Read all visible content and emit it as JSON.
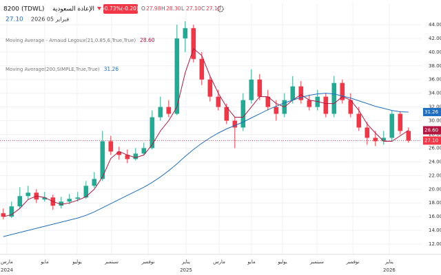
{
  "chart_data": {
    "type": "candlestick",
    "symbol": "8200",
    "exchange": "(TDWL)",
    "title": "الإعادة السعودية",
    "change": "-0.73%(-0.20)",
    "ohlc": [
      {
        "key": "O",
        "text": "27.98"
      },
      {
        "key": "H",
        "text": "28.30"
      },
      {
        "key": "L",
        "text": "27.10"
      },
      {
        "key": "C",
        "text": "27.10"
      }
    ],
    "last_price": "27.10",
    "date": "فبراير 05 2026",
    "x": [
      0,
      1,
      2,
      3,
      4,
      5,
      6,
      7,
      8,
      9,
      10,
      11,
      12,
      13,
      14,
      15,
      16,
      17,
      18,
      19,
      20,
      21,
      22,
      23,
      24,
      25,
      26,
      27,
      28,
      29,
      30,
      31,
      32,
      33,
      34,
      35,
      36,
      37,
      38,
      39,
      40,
      41,
      42,
      43,
      44,
      45,
      46,
      47,
      48,
      49
    ],
    "open": [
      16.5,
      16.0,
      17.5,
      19.0,
      19.5,
      18.5,
      18.8,
      17.6,
      18.2,
      18.6,
      18.8,
      20.5,
      21.5,
      27.0,
      25.5,
      25.0,
      24.4,
      25.2,
      26.0,
      30.5,
      32.0,
      31.0,
      42.0,
      43.5,
      39.0,
      36.0,
      33.5,
      32.0,
      30.0,
      29.0,
      33.0,
      36.0,
      33.5,
      32.0,
      31.0,
      33.0,
      35.0,
      33.0,
      32.0,
      33.5,
      31.0,
      35.5,
      33.0,
      31.0,
      29.0,
      27.5,
      27.0,
      27.5,
      31.0,
      28.5
    ],
    "high": [
      17.2,
      18.2,
      20.3,
      20.5,
      20.0,
      19.6,
      19.2,
      18.9,
      19.3,
      19.6,
      21.2,
      22.5,
      28.5,
      27.8,
      26.2,
      25.8,
      26.0,
      26.8,
      31.5,
      33.5,
      33.0,
      44.0,
      44.5,
      44.0,
      40.0,
      36.5,
      34.5,
      32.5,
      30.5,
      34.0,
      37.5,
      36.8,
      34.5,
      33.0,
      34.0,
      36.5,
      35.8,
      33.8,
      34.5,
      34.0,
      36.5,
      36.0,
      34.0,
      32.0,
      29.8,
      28.5,
      28.5,
      31.5,
      31.4,
      29.0
    ],
    "low": [
      15.6,
      15.8,
      17.2,
      18.5,
      18.0,
      18.2,
      17.0,
      17.2,
      17.8,
      18.2,
      18.6,
      20.2,
      21.2,
      25.0,
      24.3,
      23.8,
      24.2,
      25.0,
      25.8,
      30.0,
      30.5,
      30.8,
      40.0,
      38.5,
      35.2,
      32.8,
      31.5,
      29.5,
      26.0,
      28.5,
      32.5,
      33.0,
      31.5,
      30.0,
      30.5,
      32.5,
      32.5,
      31.5,
      31.5,
      30.5,
      30.5,
      32.5,
      30.5,
      28.5,
      26.5,
      26.3,
      26.5,
      27.0,
      28.0,
      26.8
    ],
    "close": [
      16.0,
      17.5,
      19.0,
      19.5,
      18.5,
      18.8,
      17.6,
      18.2,
      18.6,
      18.8,
      20.5,
      21.5,
      27.0,
      25.5,
      25.0,
      24.4,
      25.2,
      26.0,
      30.5,
      32.0,
      31.0,
      42.0,
      43.5,
      39.0,
      36.0,
      33.5,
      32.0,
      30.0,
      29.0,
      33.0,
      36.0,
      33.5,
      32.0,
      31.0,
      33.0,
      35.0,
      33.0,
      32.0,
      33.5,
      31.0,
      35.5,
      33.0,
      31.0,
      29.0,
      27.5,
      27.0,
      27.5,
      31.0,
      28.5,
      27.1
    ],
    "up_color": "#22ab94",
    "down_color": "#f23645",
    "series": [
      {
        "name": "Moving Average - Arnaud Legoux(21,0.85,6,True,True)",
        "color": "#b2163f",
        "last_label": "28.60",
        "values": [
          16.0,
          16.3,
          17.2,
          18.5,
          19.0,
          18.8,
          18.2,
          17.8,
          18.0,
          18.4,
          18.9,
          20.0,
          21.8,
          24.5,
          25.5,
          25.0,
          24.6,
          25.0,
          26.5,
          28.5,
          30.0,
          32.0,
          37.0,
          40.5,
          39.5,
          36.5,
          34.0,
          32.0,
          30.5,
          30.5,
          32.0,
          33.5,
          33.5,
          32.5,
          32.0,
          33.0,
          33.8,
          33.0,
          32.8,
          32.5,
          32.5,
          33.5,
          33.0,
          31.5,
          29.5,
          28.2,
          27.0,
          27.0,
          27.8,
          28.6
        ]
      },
      {
        "name": "Moving Average(200,SIMPLE,True,True)",
        "color": "#1e6fc2",
        "last_label": "31.26",
        "values": [
          13.1,
          13.4,
          13.7,
          14.0,
          14.3,
          14.6,
          14.9,
          15.2,
          15.5,
          15.8,
          16.2,
          16.7,
          17.3,
          17.9,
          18.5,
          19.1,
          19.7,
          20.3,
          21.0,
          21.8,
          22.7,
          23.7,
          24.8,
          25.8,
          26.7,
          27.5,
          28.2,
          28.8,
          29.3,
          29.8,
          30.4,
          31.0,
          31.6,
          32.1,
          32.6,
          33.0,
          33.4,
          33.7,
          33.9,
          34.0,
          33.9,
          33.6,
          33.3,
          32.9,
          32.5,
          32.1,
          31.8,
          31.5,
          31.3,
          31.26
        ]
      }
    ],
    "xlim": [
      -0.4,
      50.6
    ],
    "xticks": [
      {
        "value": 0.43,
        "label": "مارس",
        "year": "2024"
      },
      {
        "value": 5.02,
        "label": "مايو"
      },
      {
        "value": 8.93,
        "label": "يوليو"
      },
      {
        "value": 13.1,
        "label": "سبتمبر"
      },
      {
        "value": 17.52,
        "label": "نوفمبر"
      },
      {
        "value": 22.1,
        "label": "يناير",
        "year": "2025"
      },
      {
        "value": 26.1,
        "label": "مارس"
      },
      {
        "value": 30.02,
        "label": "مايو"
      },
      {
        "value": 33.77,
        "label": "يوليو"
      },
      {
        "value": 37.93,
        "label": "سبتمبر"
      },
      {
        "value": 42.27,
        "label": "نوفمبر"
      },
      {
        "value": 46.68,
        "label": "يناير",
        "year": "2026"
      }
    ],
    "ylim": [
      10.5,
      47.1
    ],
    "yticks": [
      {
        "value": 12,
        "label": "12.00"
      },
      {
        "value": 14,
        "label": "14.00"
      },
      {
        "value": 16,
        "label": "16.00"
      },
      {
        "value": 18,
        "label": "18.00"
      },
      {
        "value": 20,
        "label": "20.00"
      },
      {
        "value": 22,
        "label": "22.00"
      },
      {
        "value": 24,
        "label": "24.00"
      },
      {
        "value": 26,
        "label": "26.00"
      },
      {
        "value": 28,
        "label": "28.00"
      },
      {
        "value": 30,
        "label": "30.00"
      },
      {
        "value": 32,
        "label": "32.00"
      },
      {
        "value": 34,
        "label": "34.00"
      },
      {
        "value": 36,
        "label": "36.00"
      },
      {
        "value": 38,
        "label": "38.00"
      },
      {
        "value": 40,
        "label": "40.00"
      },
      {
        "value": 42,
        "label": "42.00"
      },
      {
        "value": 44,
        "label": "44.00"
      }
    ],
    "grid": true
  }
}
